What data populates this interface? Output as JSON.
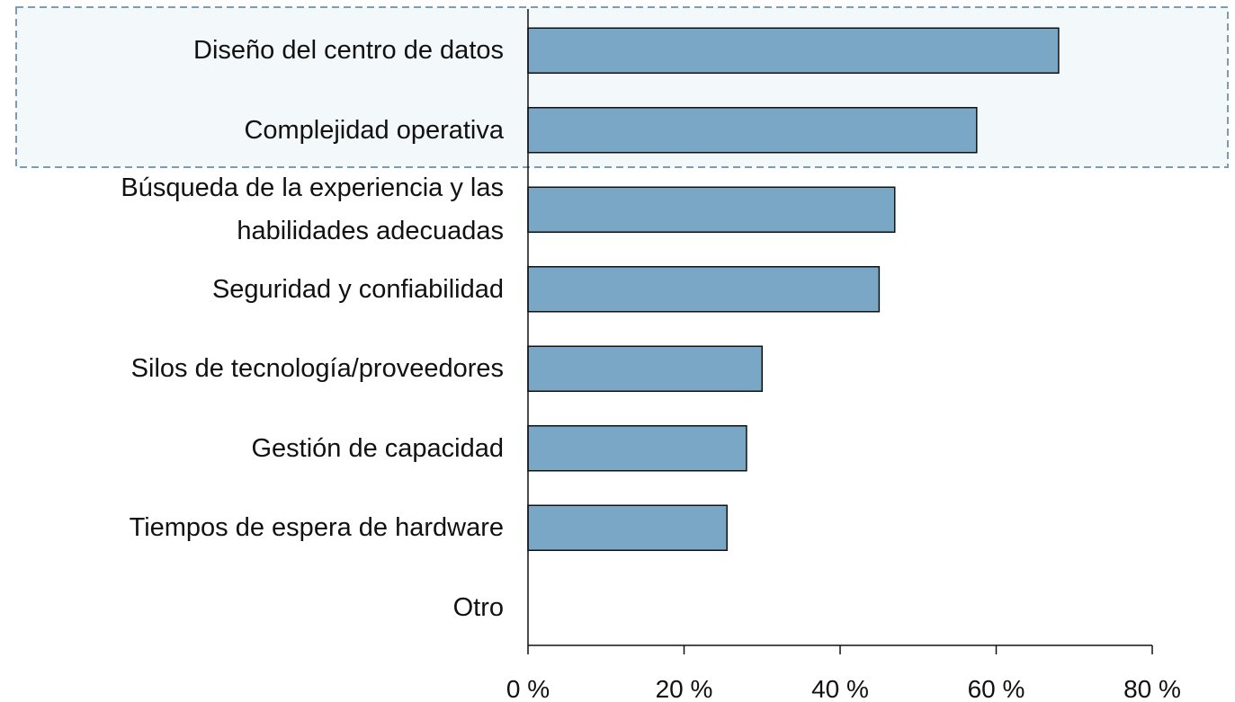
{
  "chart_data": {
    "type": "bar",
    "orientation": "horizontal",
    "categories": [
      "Diseño del centro de datos",
      "Complejidad operativa",
      "Búsqueda de la experiencia y las\nhabilidades adecuadas",
      "Seguridad y confiabilidad",
      "Silos de tecnología/proveedores",
      "Gestión de capacidad",
      "Tiempos de espera de hardware",
      "Otro"
    ],
    "values": [
      68,
      57.5,
      47,
      45,
      30,
      28,
      25.5,
      0
    ],
    "color": "#7ba7c7",
    "xlim": [
      0,
      80
    ],
    "xticks": [
      {
        "value": 0,
        "label": "0 %"
      },
      {
        "value": 20,
        "label": "20 %"
      },
      {
        "value": 40,
        "label": "40 %"
      },
      {
        "value": 60,
        "label": "60 %"
      },
      {
        "value": 80,
        "label": "80 %"
      }
    ]
  }
}
